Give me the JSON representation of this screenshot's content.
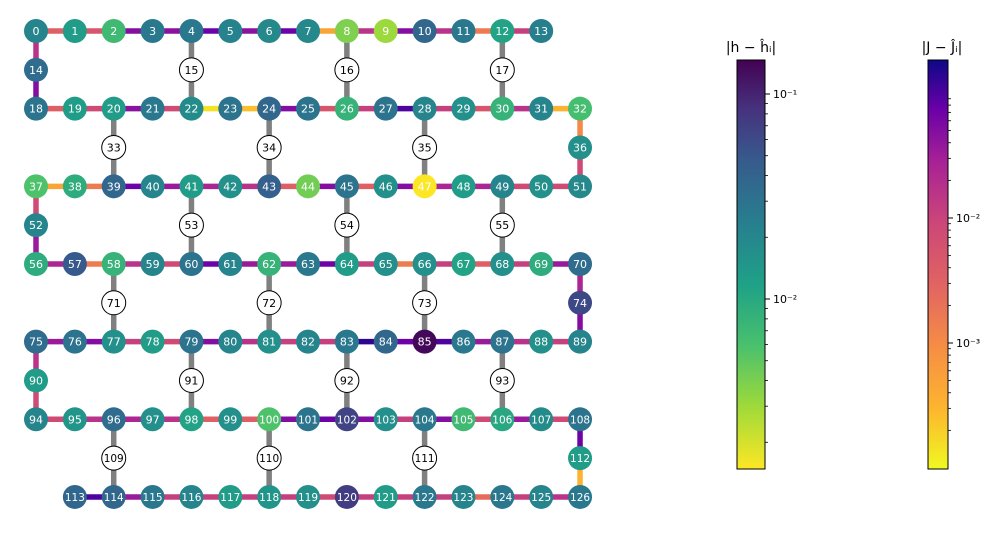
{
  "colorbars": [
    {
      "title": "|h − ĥᵢ|",
      "scale": "log",
      "colormap": "viridis",
      "ticks": [
        {
          "value": 0.1,
          "label": "10⁻¹"
        },
        {
          "value": 0.01,
          "label": "10⁻²"
        }
      ],
      "range": [
        0.0017,
        0.14
      ]
    },
    {
      "title": "|J − Ĵᵢ|",
      "scale": "log",
      "colormap": "plasma",
      "ticks": [
        {
          "value": 0.01,
          "label": "10⁻²"
        },
        {
          "value": 0.001,
          "label": "10⁻³"
        }
      ],
      "range": [
        0.00017,
        0.06
      ]
    }
  ],
  "nodes": [
    {
      "id": 0,
      "x": 0,
      "y": 0,
      "c": 0.45
    },
    {
      "id": 1,
      "x": 1,
      "y": 0,
      "c": 0.55
    },
    {
      "id": 2,
      "x": 2,
      "y": 0,
      "c": 0.68
    },
    {
      "id": 3,
      "x": 3,
      "y": 0,
      "c": 0.4
    },
    {
      "id": 4,
      "x": 4,
      "y": 0,
      "c": 0.4
    },
    {
      "id": 5,
      "x": 5,
      "y": 0,
      "c": 0.44
    },
    {
      "id": 6,
      "x": 6,
      "y": 0,
      "c": 0.47
    },
    {
      "id": 7,
      "x": 7,
      "y": 0,
      "c": 0.47
    },
    {
      "id": 8,
      "x": 8,
      "y": 0,
      "c": 0.8
    },
    {
      "id": 9,
      "x": 9,
      "y": 0,
      "c": 0.85
    },
    {
      "id": 10,
      "x": 10,
      "y": 0,
      "c": 0.33
    },
    {
      "id": 11,
      "x": 11,
      "y": 0,
      "c": 0.4
    },
    {
      "id": 12,
      "x": 12,
      "y": 0,
      "c": 0.58
    },
    {
      "id": 13,
      "x": 13,
      "y": 0,
      "c": 0.43
    },
    {
      "id": 14,
      "x": 0,
      "y": 1,
      "c": 0.35
    },
    {
      "id": 15,
      "x": 4,
      "y": 1,
      "c": -1
    },
    {
      "id": 16,
      "x": 8,
      "y": 1,
      "c": -1
    },
    {
      "id": 17,
      "x": 12,
      "y": 1,
      "c": -1
    },
    {
      "id": 18,
      "x": 0,
      "y": 2,
      "c": 0.38
    },
    {
      "id": 19,
      "x": 1,
      "y": 2,
      "c": 0.55
    },
    {
      "id": 20,
      "x": 2,
      "y": 2,
      "c": 0.55
    },
    {
      "id": 21,
      "x": 3,
      "y": 2,
      "c": 0.4
    },
    {
      "id": 22,
      "x": 4,
      "y": 2,
      "c": 0.48
    },
    {
      "id": 23,
      "x": 5,
      "y": 2,
      "c": 0.38
    },
    {
      "id": 24,
      "x": 6,
      "y": 2,
      "c": 0.33
    },
    {
      "id": 25,
      "x": 7,
      "y": 2,
      "c": 0.38
    },
    {
      "id": 26,
      "x": 8,
      "y": 2,
      "c": 0.65
    },
    {
      "id": 27,
      "x": 9,
      "y": 2,
      "c": 0.38
    },
    {
      "id": 28,
      "x": 10,
      "y": 2,
      "c": 0.45
    },
    {
      "id": 29,
      "x": 11,
      "y": 2,
      "c": 0.5
    },
    {
      "id": 30,
      "x": 12,
      "y": 2,
      "c": 0.65
    },
    {
      "id": 31,
      "x": 13,
      "y": 2,
      "c": 0.45
    },
    {
      "id": 32,
      "x": 14,
      "y": 2,
      "c": 0.7
    },
    {
      "id": 33,
      "x": 2,
      "y": 3,
      "c": -1
    },
    {
      "id": 34,
      "x": 6,
      "y": 3,
      "c": -1
    },
    {
      "id": 35,
      "x": 10,
      "y": 3,
      "c": -1
    },
    {
      "id": 36,
      "x": 14,
      "y": 3,
      "c": 0.5
    },
    {
      "id": 37,
      "x": 0,
      "y": 4,
      "c": 0.72
    },
    {
      "id": 38,
      "x": 1,
      "y": 4,
      "c": 0.62
    },
    {
      "id": 39,
      "x": 2,
      "y": 4,
      "c": 0.33
    },
    {
      "id": 40,
      "x": 3,
      "y": 4,
      "c": 0.45
    },
    {
      "id": 41,
      "x": 4,
      "y": 4,
      "c": 0.55
    },
    {
      "id": 42,
      "x": 5,
      "y": 4,
      "c": 0.5
    },
    {
      "id": 43,
      "x": 6,
      "y": 4,
      "c": 0.3
    },
    {
      "id": 44,
      "x": 7,
      "y": 4,
      "c": 0.78
    },
    {
      "id": 45,
      "x": 8,
      "y": 4,
      "c": 0.38
    },
    {
      "id": 46,
      "x": 9,
      "y": 4,
      "c": 0.5
    },
    {
      "id": 47,
      "x": 10,
      "y": 4,
      "c": 1.0
    },
    {
      "id": 48,
      "x": 11,
      "y": 4,
      "c": 0.55
    },
    {
      "id": 49,
      "x": 12,
      "y": 4,
      "c": 0.45
    },
    {
      "id": 50,
      "x": 13,
      "y": 4,
      "c": 0.5
    },
    {
      "id": 51,
      "x": 14,
      "y": 4,
      "c": 0.47
    },
    {
      "id": 52,
      "x": 0,
      "y": 5,
      "c": 0.45
    },
    {
      "id": 53,
      "x": 4,
      "y": 5,
      "c": -1
    },
    {
      "id": 54,
      "x": 8,
      "y": 5,
      "c": -1
    },
    {
      "id": 55,
      "x": 12,
      "y": 5,
      "c": -1
    },
    {
      "id": 56,
      "x": 0,
      "y": 6,
      "c": 0.62
    },
    {
      "id": 57,
      "x": 1,
      "y": 6,
      "c": 0.28
    },
    {
      "id": 58,
      "x": 2,
      "y": 6,
      "c": 0.65
    },
    {
      "id": 59,
      "x": 3,
      "y": 6,
      "c": 0.45
    },
    {
      "id": 60,
      "x": 4,
      "y": 6,
      "c": 0.38
    },
    {
      "id": 61,
      "x": 5,
      "y": 6,
      "c": 0.45
    },
    {
      "id": 62,
      "x": 6,
      "y": 6,
      "c": 0.65
    },
    {
      "id": 63,
      "x": 7,
      "y": 6,
      "c": 0.4
    },
    {
      "id": 64,
      "x": 8,
      "y": 6,
      "c": 0.55
    },
    {
      "id": 65,
      "x": 9,
      "y": 6,
      "c": 0.5
    },
    {
      "id": 66,
      "x": 10,
      "y": 6,
      "c": 0.5
    },
    {
      "id": 67,
      "x": 11,
      "y": 6,
      "c": 0.58
    },
    {
      "id": 68,
      "x": 12,
      "y": 6,
      "c": 0.5
    },
    {
      "id": 69,
      "x": 13,
      "y": 6,
      "c": 0.62
    },
    {
      "id": 70,
      "x": 14,
      "y": 6,
      "c": 0.35
    },
    {
      "id": 71,
      "x": 2,
      "y": 7,
      "c": -1
    },
    {
      "id": 72,
      "x": 6,
      "y": 7,
      "c": -1
    },
    {
      "id": 73,
      "x": 10,
      "y": 7,
      "c": -1
    },
    {
      "id": 74,
      "x": 14,
      "y": 7,
      "c": 0.22
    },
    {
      "id": 75,
      "x": 0,
      "y": 8,
      "c": 0.35
    },
    {
      "id": 76,
      "x": 1,
      "y": 8,
      "c": 0.38
    },
    {
      "id": 77,
      "x": 2,
      "y": 8,
      "c": 0.5
    },
    {
      "id": 78,
      "x": 3,
      "y": 8,
      "c": 0.55
    },
    {
      "id": 79,
      "x": 4,
      "y": 8,
      "c": 0.38
    },
    {
      "id": 80,
      "x": 5,
      "y": 8,
      "c": 0.45
    },
    {
      "id": 81,
      "x": 6,
      "y": 8,
      "c": 0.5
    },
    {
      "id": 82,
      "x": 7,
      "y": 8,
      "c": 0.45
    },
    {
      "id": 83,
      "x": 8,
      "y": 8,
      "c": 0.4
    },
    {
      "id": 84,
      "x": 9,
      "y": 8,
      "c": 0.33
    },
    {
      "id": 85,
      "x": 10,
      "y": 8,
      "c": 0.02
    },
    {
      "id": 86,
      "x": 11,
      "y": 8,
      "c": 0.4
    },
    {
      "id": 87,
      "x": 12,
      "y": 8,
      "c": 0.38
    },
    {
      "id": 88,
      "x": 13,
      "y": 8,
      "c": 0.5
    },
    {
      "id": 89,
      "x": 14,
      "y": 8,
      "c": 0.45
    },
    {
      "id": 90,
      "x": 0,
      "y": 9,
      "c": 0.55
    },
    {
      "id": 91,
      "x": 4,
      "y": 9,
      "c": -1
    },
    {
      "id": 92,
      "x": 8,
      "y": 9,
      "c": -1
    },
    {
      "id": 93,
      "x": 12,
      "y": 9,
      "c": -1
    },
    {
      "id": 94,
      "x": 0,
      "y": 10,
      "c": 0.45
    },
    {
      "id": 95,
      "x": 1,
      "y": 10,
      "c": 0.52
    },
    {
      "id": 96,
      "x": 2,
      "y": 10,
      "c": 0.35
    },
    {
      "id": 97,
      "x": 3,
      "y": 10,
      "c": 0.5
    },
    {
      "id": 98,
      "x": 4,
      "y": 10,
      "c": 0.58
    },
    {
      "id": 99,
      "x": 5,
      "y": 10,
      "c": 0.5
    },
    {
      "id": 100,
      "x": 6,
      "y": 10,
      "c": 0.72
    },
    {
      "id": 101,
      "x": 7,
      "y": 10,
      "c": 0.38
    },
    {
      "id": 102,
      "x": 8,
      "y": 10,
      "c": 0.2
    },
    {
      "id": 103,
      "x": 9,
      "y": 10,
      "c": 0.5
    },
    {
      "id": 104,
      "x": 10,
      "y": 10,
      "c": 0.4
    },
    {
      "id": 105,
      "x": 11,
      "y": 10,
      "c": 0.68
    },
    {
      "id": 106,
      "x": 12,
      "y": 10,
      "c": 0.6
    },
    {
      "id": 107,
      "x": 13,
      "y": 10,
      "c": 0.48
    },
    {
      "id": 108,
      "x": 14,
      "y": 10,
      "c": 0.38
    },
    {
      "id": 109,
      "x": 2,
      "y": 11,
      "c": -1
    },
    {
      "id": 110,
      "x": 6,
      "y": 11,
      "c": -1
    },
    {
      "id": 111,
      "x": 10,
      "y": 11,
      "c": -1
    },
    {
      "id": 112,
      "x": 14,
      "y": 11,
      "c": 0.55
    },
    {
      "id": 113,
      "x": 1,
      "y": 12,
      "c": 0.33
    },
    {
      "id": 114,
      "x": 2,
      "y": 12,
      "c": 0.33
    },
    {
      "id": 115,
      "x": 3,
      "y": 12,
      "c": 0.4
    },
    {
      "id": 116,
      "x": 4,
      "y": 12,
      "c": 0.45
    },
    {
      "id": 117,
      "x": 5,
      "y": 12,
      "c": 0.55
    },
    {
      "id": 118,
      "x": 6,
      "y": 12,
      "c": 0.52
    },
    {
      "id": 119,
      "x": 7,
      "y": 12,
      "c": 0.5
    },
    {
      "id": 120,
      "x": 8,
      "y": 12,
      "c": 0.18
    },
    {
      "id": 121,
      "x": 9,
      "y": 12,
      "c": 0.55
    },
    {
      "id": 122,
      "x": 10,
      "y": 12,
      "c": 0.4
    },
    {
      "id": 123,
      "x": 11,
      "y": 12,
      "c": 0.45
    },
    {
      "id": 124,
      "x": 12,
      "y": 12,
      "c": 0.4
    },
    {
      "id": 125,
      "x": 13,
      "y": 12,
      "c": 0.45
    },
    {
      "id": 126,
      "x": 14,
      "y": 12,
      "c": 0.4
    }
  ],
  "edges": [
    [
      0,
      1,
      0.55
    ],
    [
      1,
      2,
      0.5
    ],
    [
      2,
      3,
      0.2
    ],
    [
      3,
      4,
      0.22
    ],
    [
      4,
      5,
      0.15
    ],
    [
      5,
      6,
      0.22
    ],
    [
      6,
      7,
      0.15
    ],
    [
      7,
      8,
      0.8
    ],
    [
      8,
      9,
      0.35
    ],
    [
      9,
      10,
      0.2
    ],
    [
      10,
      11,
      0.35
    ],
    [
      11,
      12,
      0.65
    ],
    [
      12,
      13,
      0.4
    ],
    [
      0,
      14,
      0.35
    ],
    [
      14,
      18,
      0.2
    ],
    [
      4,
      15,
      -1
    ],
    [
      15,
      22,
      -1
    ],
    [
      8,
      16,
      -1
    ],
    [
      16,
      26,
      -1
    ],
    [
      12,
      17,
      -1
    ],
    [
      17,
      30,
      -1
    ],
    [
      18,
      19,
      0.55
    ],
    [
      19,
      20,
      0.45
    ],
    [
      20,
      21,
      0.22
    ],
    [
      21,
      22,
      0.45
    ],
    [
      22,
      23,
      0.95
    ],
    [
      23,
      24,
      0.88
    ],
    [
      24,
      25,
      0.2
    ],
    [
      25,
      26,
      0.5
    ],
    [
      26,
      27,
      0.4
    ],
    [
      27,
      28,
      0.1
    ],
    [
      28,
      29,
      0.4
    ],
    [
      29,
      30,
      0.5
    ],
    [
      30,
      31,
      0.35
    ],
    [
      31,
      32,
      0.85
    ],
    [
      20,
      33,
      -1
    ],
    [
      33,
      39,
      -1
    ],
    [
      24,
      34,
      -1
    ],
    [
      34,
      43,
      -1
    ],
    [
      28,
      35,
      -1
    ],
    [
      35,
      47,
      -1
    ],
    [
      32,
      36,
      0.7
    ],
    [
      36,
      51,
      0.45
    ],
    [
      37,
      38,
      0.8
    ],
    [
      38,
      39,
      0.65
    ],
    [
      39,
      40,
      0.15
    ],
    [
      40,
      41,
      0.25
    ],
    [
      41,
      42,
      0.3
    ],
    [
      42,
      43,
      0.35
    ],
    [
      43,
      44,
      0.55
    ],
    [
      44,
      45,
      0.2
    ],
    [
      45,
      46,
      0.55
    ],
    [
      46,
      47,
      0.2
    ],
    [
      47,
      48,
      0.3
    ],
    [
      48,
      49,
      0.3
    ],
    [
      49,
      50,
      0.45
    ],
    [
      50,
      51,
      0.45
    ],
    [
      37,
      52,
      0.45
    ],
    [
      52,
      56,
      0.25
    ],
    [
      41,
      53,
      -1
    ],
    [
      53,
      60,
      -1
    ],
    [
      45,
      54,
      -1
    ],
    [
      54,
      64,
      -1
    ],
    [
      49,
      55,
      -1
    ],
    [
      55,
      68,
      -1
    ],
    [
      56,
      57,
      0.3
    ],
    [
      57,
      58,
      0.65
    ],
    [
      58,
      59,
      0.35
    ],
    [
      59,
      60,
      0.45
    ],
    [
      60,
      61,
      0.15
    ],
    [
      61,
      62,
      0.25
    ],
    [
      62,
      63,
      0.25
    ],
    [
      63,
      64,
      0.15
    ],
    [
      64,
      65,
      0.4
    ],
    [
      65,
      66,
      0.65
    ],
    [
      66,
      67,
      0.4
    ],
    [
      67,
      68,
      0.55
    ],
    [
      68,
      69,
      0.4
    ],
    [
      69,
      70,
      0.25
    ],
    [
      58,
      71,
      -1
    ],
    [
      71,
      77,
      -1
    ],
    [
      62,
      72,
      -1
    ],
    [
      72,
      81,
      -1
    ],
    [
      66,
      73,
      -1
    ],
    [
      73,
      85,
      -1
    ],
    [
      70,
      74,
      0.3
    ],
    [
      74,
      89,
      0.2
    ],
    [
      75,
      76,
      0.25
    ],
    [
      76,
      77,
      0.2
    ],
    [
      77,
      78,
      0.4
    ],
    [
      78,
      79,
      0.45
    ],
    [
      79,
      80,
      0.2
    ],
    [
      80,
      81,
      0.35
    ],
    [
      81,
      82,
      0.4
    ],
    [
      82,
      83,
      0.4
    ],
    [
      83,
      84,
      0.05
    ],
    [
      84,
      85,
      0.15
    ],
    [
      85,
      86,
      0.1
    ],
    [
      86,
      87,
      0.25
    ],
    [
      87,
      88,
      0.35
    ],
    [
      88,
      89,
      0.4
    ],
    [
      75,
      90,
      0.35
    ],
    [
      90,
      94,
      0.45
    ],
    [
      79,
      91,
      -1
    ],
    [
      91,
      98,
      -1
    ],
    [
      83,
      92,
      -1
    ],
    [
      92,
      102,
      -1
    ],
    [
      87,
      93,
      -1
    ],
    [
      93,
      106,
      -1
    ],
    [
      94,
      95,
      0.45
    ],
    [
      95,
      96,
      0.35
    ],
    [
      96,
      97,
      0.3
    ],
    [
      97,
      98,
      0.35
    ],
    [
      98,
      99,
      0.55
    ],
    [
      99,
      100,
      0.55
    ],
    [
      100,
      101,
      0.2
    ],
    [
      101,
      102,
      0.15
    ],
    [
      102,
      103,
      0.2
    ],
    [
      103,
      104,
      0.4
    ],
    [
      104,
      105,
      0.2
    ],
    [
      105,
      106,
      0.45
    ],
    [
      106,
      107,
      0.25
    ],
    [
      107,
      108,
      0.45
    ],
    [
      96,
      109,
      -1
    ],
    [
      109,
      114,
      -1
    ],
    [
      100,
      110,
      -1
    ],
    [
      110,
      118,
      -1
    ],
    [
      104,
      111,
      -1
    ],
    [
      111,
      122,
      -1
    ],
    [
      108,
      112,
      0.15
    ],
    [
      112,
      126,
      0.85
    ],
    [
      113,
      114,
      0.1
    ],
    [
      114,
      115,
      0.25
    ],
    [
      115,
      116,
      0.4
    ],
    [
      116,
      117,
      0.4
    ],
    [
      117,
      118,
      0.4
    ],
    [
      118,
      119,
      0.4
    ],
    [
      119,
      120,
      0.45
    ],
    [
      120,
      121,
      0.4
    ],
    [
      121,
      122,
      0.4
    ],
    [
      122,
      123,
      0.4
    ],
    [
      123,
      124,
      0.6
    ],
    [
      124,
      125,
      0.4
    ],
    [
      125,
      126,
      0.35
    ]
  ]
}
